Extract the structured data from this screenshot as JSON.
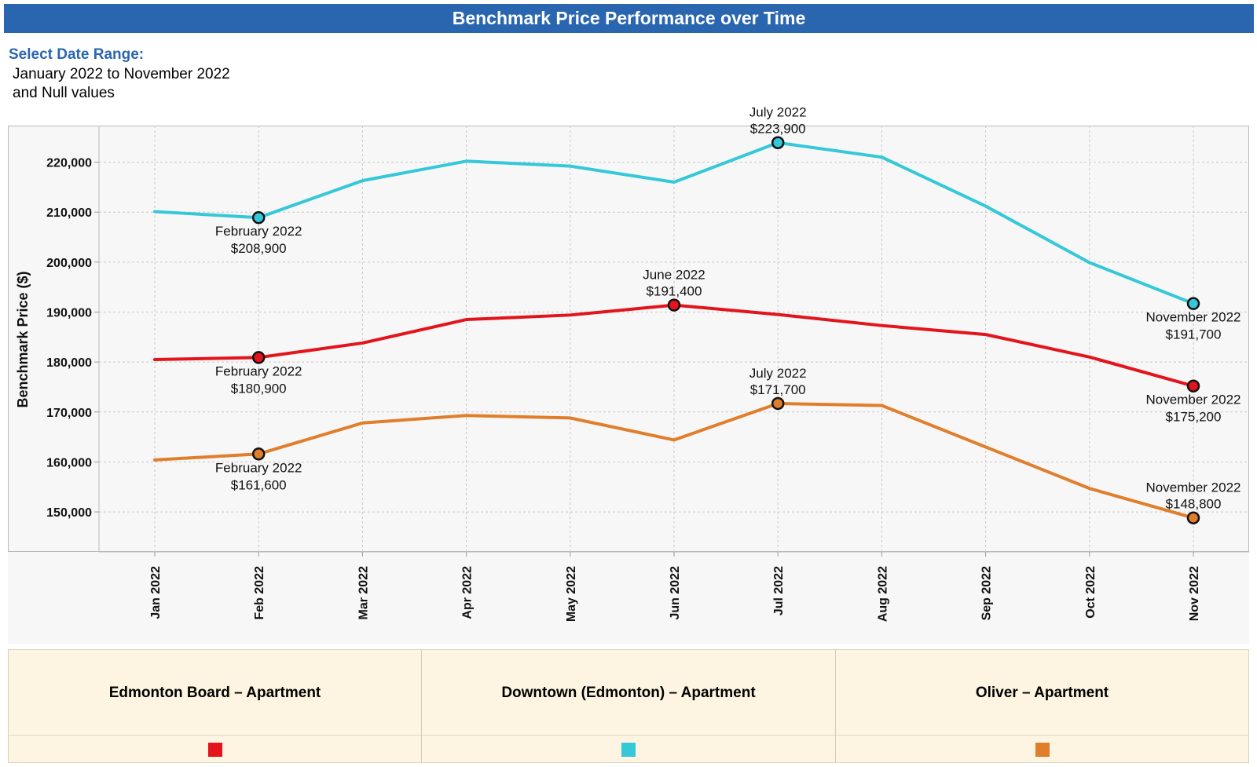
{
  "title": "Benchmark Price Performance over Time",
  "filter": {
    "label": "Select Date Range:",
    "line1": "January 2022 to November 2022",
    "line2": "and Null values"
  },
  "chart_data": {
    "type": "line",
    "ylabel": "Benchmark Price ($)",
    "xlabel": "",
    "categories": [
      "Jan 2022",
      "Feb 2022",
      "Mar 2022",
      "Apr 2022",
      "May 2022",
      "Jun 2022",
      "Jul 2022",
      "Aug 2022",
      "Sep 2022",
      "Oct 2022",
      "Nov 2022"
    ],
    "ylim": [
      142000,
      227000
    ],
    "yticks": [
      150000,
      160000,
      170000,
      180000,
      190000,
      200000,
      210000,
      220000
    ],
    "ytick_labels": [
      "150,000",
      "160,000",
      "170,000",
      "180,000",
      "190,000",
      "200,000",
      "210,000",
      "220,000"
    ],
    "grid": true,
    "series": [
      {
        "name": "Edmonton Board – Apartment",
        "color": "#e3141b",
        "values": [
          180500,
          180900,
          183800,
          188500,
          189400,
          191400,
          189500,
          187300,
          185500,
          181000,
          175200
        ],
        "markers": [
          {
            "index": 1,
            "label1": "February 2022",
            "label2": "$180,900",
            "pos": "below"
          },
          {
            "index": 5,
            "label1": "June 2022",
            "label2": "$191,400",
            "pos": "above"
          },
          {
            "index": 10,
            "label1": "November 2022",
            "label2": "$175,200",
            "pos": "below"
          }
        ]
      },
      {
        "name": "Downtown (Edmonton) – Apartment",
        "color": "#35c8d8",
        "values": [
          210100,
          208900,
          216300,
          220200,
          219200,
          216000,
          223900,
          221000,
          211200,
          199900,
          191700
        ],
        "markers": [
          {
            "index": 1,
            "label1": "February 2022",
            "label2": "$208,900",
            "pos": "below"
          },
          {
            "index": 6,
            "label1": "July 2022",
            "label2": "$223,900",
            "pos": "above"
          },
          {
            "index": 10,
            "label1": "November 2022",
            "label2": "$191,700",
            "pos": "below"
          }
        ]
      },
      {
        "name": "Oliver – Apartment",
        "color": "#e07e2b",
        "values": [
          160400,
          161600,
          167800,
          169300,
          168800,
          164400,
          171700,
          171300,
          163000,
          154700,
          148800
        ],
        "markers": [
          {
            "index": 1,
            "label1": "February 2022",
            "label2": "$161,600",
            "pos": "below"
          },
          {
            "index": 6,
            "label1": "July 2022",
            "label2": "$171,700",
            "pos": "above"
          },
          {
            "index": 10,
            "label1": "November 2022",
            "label2": "$148,800",
            "pos": "above"
          }
        ]
      }
    ]
  },
  "legend": {
    "items": [
      {
        "name": "Edmonton Board – Apartment",
        "color": "#e3141b"
      },
      {
        "name": "Downtown (Edmonton) – Apartment",
        "color": "#35c8d8"
      },
      {
        "name": "Oliver – Apartment",
        "color": "#e07e2b"
      }
    ]
  }
}
